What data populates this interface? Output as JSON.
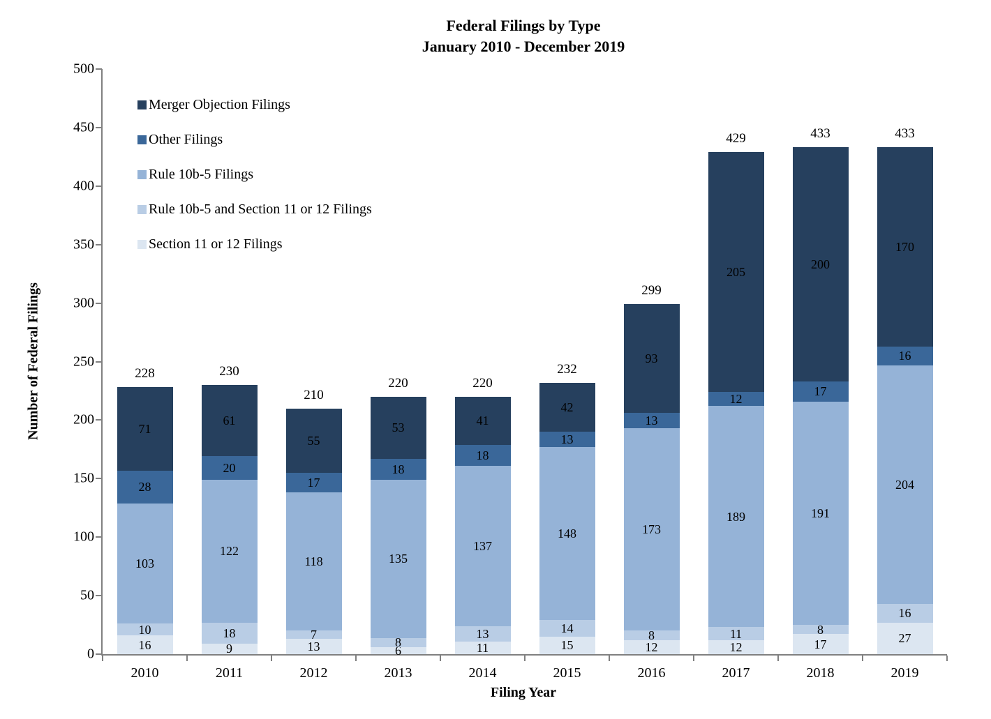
{
  "title": {
    "line1": "Federal Filings by Type",
    "line2": "January 2010 - December 2019"
  },
  "axes": {
    "y_label": "Number of Federal Filings",
    "x_label": "Filing Year",
    "y_ticks": [
      0,
      50,
      100,
      150,
      200,
      250,
      300,
      350,
      400,
      450,
      500
    ],
    "y_max": 500
  },
  "colors": {
    "axis": "#808080",
    "merger_objection": "#26405E",
    "other": "#3A6799",
    "rule_10b5": "#95B3D7",
    "rule_10b5_and_section_11_12": "#B9CDE5",
    "section_11_12": "#DCE6F1"
  },
  "legend": [
    {
      "label": "Merger Objection Filings",
      "color": "#26405E"
    },
    {
      "label": "Other Filings",
      "color": "#3A6799"
    },
    {
      "label": "Rule 10b-5 Filings",
      "color": "#95B3D7"
    },
    {
      "label": "Rule 10b-5 and Section 11 or 12 Filings",
      "color": "#B9CDE5"
    },
    {
      "label": "Section 11 or 12 Filings",
      "color": "#DCE6F1"
    }
  ],
  "chart_data": {
    "type": "bar",
    "stacked": true,
    "title": "Federal Filings by Type January 2010 - December 2019",
    "xlabel": "Filing Year",
    "ylabel": "Number of Federal Filings",
    "ylim": [
      0,
      500
    ],
    "grid": false,
    "legend_position": "inside-top-left",
    "categories": [
      "2010",
      "2011",
      "2012",
      "2013",
      "2014",
      "2015",
      "2016",
      "2017",
      "2018",
      "2019"
    ],
    "series": [
      {
        "name": "Section 11 or 12 Filings",
        "color": "#DCE6F1",
        "values": [
          16,
          9,
          13,
          6,
          11,
          15,
          12,
          12,
          17,
          27
        ]
      },
      {
        "name": "Rule 10b-5 and Section 11 or 12 Filings",
        "color": "#B9CDE5",
        "values": [
          10,
          18,
          7,
          8,
          13,
          14,
          8,
          11,
          8,
          16
        ]
      },
      {
        "name": "Rule 10b-5 Filings",
        "color": "#95B3D7",
        "values": [
          103,
          122,
          118,
          135,
          137,
          148,
          173,
          189,
          191,
          204
        ]
      },
      {
        "name": "Other Filings",
        "color": "#3A6799",
        "values": [
          28,
          20,
          17,
          18,
          18,
          13,
          13,
          12,
          17,
          16
        ]
      },
      {
        "name": "Merger Objection Filings",
        "color": "#26405E",
        "values": [
          71,
          61,
          55,
          53,
          41,
          42,
          93,
          205,
          200,
          170
        ]
      }
    ],
    "totals": [
      228,
      230,
      210,
      220,
      220,
      232,
      299,
      429,
      433,
      433
    ]
  }
}
